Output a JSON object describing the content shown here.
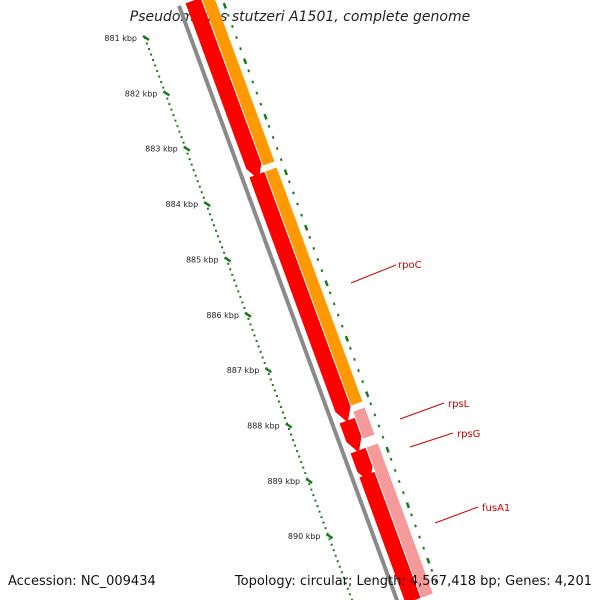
{
  "title": "Pseudomonas stutzeri A1501, complete genome",
  "footer": {
    "accession": "Accession: NC_009434",
    "summary": "Topology: circular; Length: 4,567,418 bp; Genes: 4,201"
  },
  "ruler": {
    "labels": [
      "881 kbp",
      "882 kbp",
      "883 kbp",
      "884 kbp",
      "885 kbp",
      "886 kbp",
      "887 kbp",
      "888 kbp",
      "889 kbp",
      "890 kbp"
    ],
    "color": "#1a7a1a"
  },
  "genes": [
    {
      "name": "rpoC"
    },
    {
      "name": "rpsL"
    },
    {
      "name": "rpsG"
    },
    {
      "name": "fusA1"
    }
  ],
  "colors": {
    "reverse_strand": "#ff0000",
    "forward_strand": "#ff9900",
    "pale_gene": "#f49a9a",
    "backbone": "#8a8a8a",
    "labels": "#d00000"
  }
}
